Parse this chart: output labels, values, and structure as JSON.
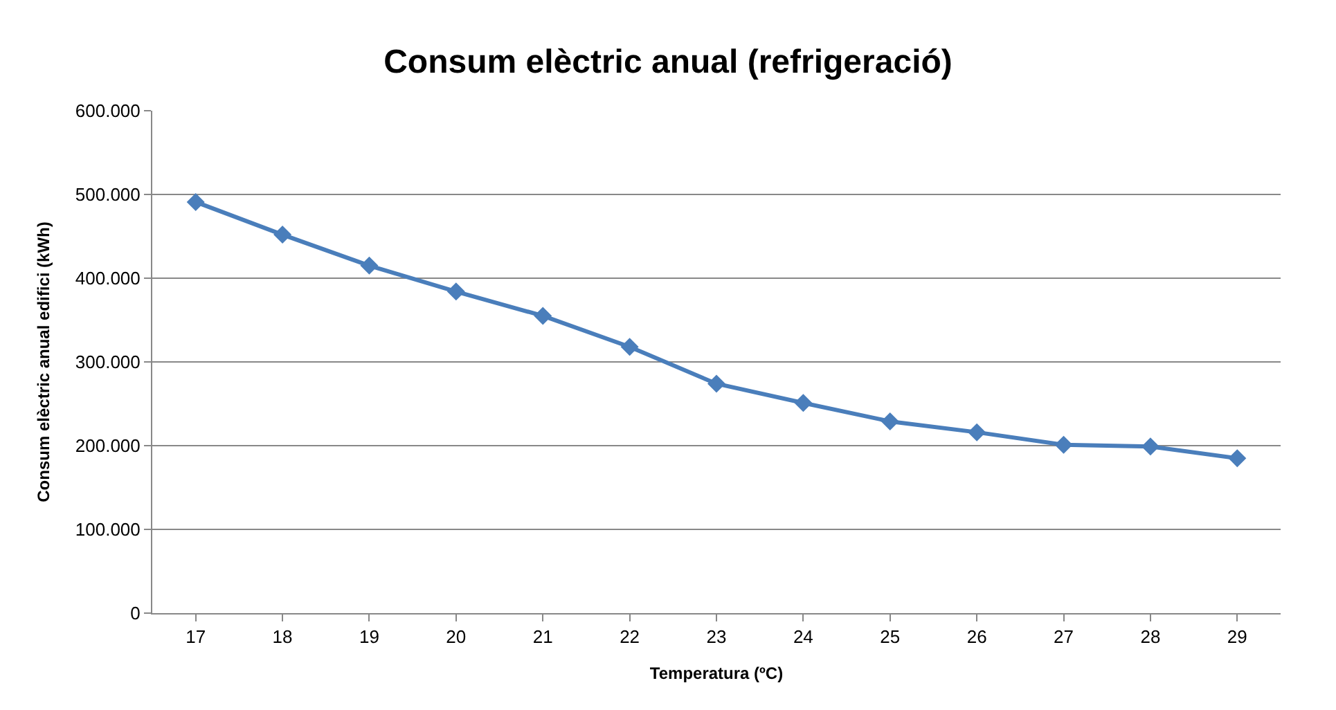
{
  "chart_data": {
    "type": "line",
    "title": "Consum elèctric anual (refrigeració)",
    "xlabel": "Temperatura (ºC)",
    "ylabel": "Consum elèctric anual edifici (kWh)",
    "categories": [
      "17",
      "18",
      "19",
      "20",
      "21",
      "22",
      "23",
      "24",
      "25",
      "26",
      "27",
      "28",
      "29"
    ],
    "series": [
      {
        "color": "#4a7ebb",
        "values": [
          491000,
          452000,
          415000,
          384000,
          355000,
          318000,
          274000,
          251000,
          229000,
          216000,
          201000,
          199000,
          185000
        ]
      }
    ],
    "ylim": [
      0,
      600000
    ],
    "yticks": [
      {
        "value": 0,
        "label": "0"
      },
      {
        "value": 100000,
        "label": "100.000"
      },
      {
        "value": 200000,
        "label": "200.000"
      },
      {
        "value": 300000,
        "label": "300.000"
      },
      {
        "value": 400000,
        "label": "400.000"
      },
      {
        "value": 500000,
        "label": "500.000"
      },
      {
        "value": 600000,
        "label": "600.000"
      }
    ],
    "grid": "y",
    "marker": "diamond",
    "line_style": "solid",
    "legend": false
  }
}
